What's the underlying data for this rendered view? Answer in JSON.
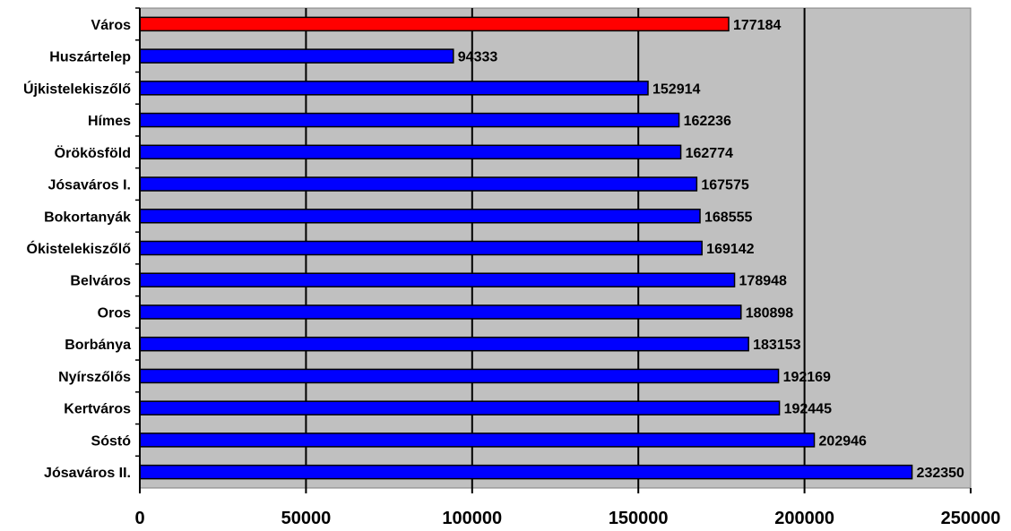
{
  "chart_data": {
    "type": "bar",
    "orientation": "horizontal",
    "categories": [
      "Város",
      "Huszártelep",
      "Újkistelekiszőlő",
      "Hímes",
      "Örökösföld",
      "Jósaváros I.",
      "Bokortanyák",
      "Ókistelekiszőlő",
      "Belváros",
      "Oros",
      "Borbánya",
      "Nyírszőlős",
      "Kertváros",
      "Sóstó",
      "Jósaváros II."
    ],
    "values": [
      177184,
      94333,
      152914,
      162236,
      162774,
      167575,
      168555,
      169142,
      178948,
      180898,
      183153,
      192169,
      192445,
      202946,
      232350
    ],
    "value_labels": [
      "177184",
      "94333",
      "152914",
      "162236",
      "162774",
      "167575",
      "168555",
      "169142",
      "178948",
      "180898",
      "183153",
      "192169",
      "192445",
      "202946",
      "232350"
    ],
    "bar_colors": [
      "#ff0000",
      "#0000ff",
      "#0000ff",
      "#0000ff",
      "#0000ff",
      "#0000ff",
      "#0000ff",
      "#0000ff",
      "#0000ff",
      "#0000ff",
      "#0000ff",
      "#0000ff",
      "#0000ff",
      "#0000ff",
      "#0000ff"
    ],
    "x_ticks": [
      0,
      50000,
      100000,
      150000,
      200000,
      250000
    ],
    "x_tick_labels": [
      "0",
      "50000",
      "100000",
      "150000",
      "200000",
      "250000"
    ],
    "xlim": [
      0,
      250000
    ],
    "title": "",
    "xlabel": "",
    "ylabel": "",
    "grid": "vertical major gridlines",
    "legend": "none",
    "plot_background": "#c0c0c0"
  }
}
